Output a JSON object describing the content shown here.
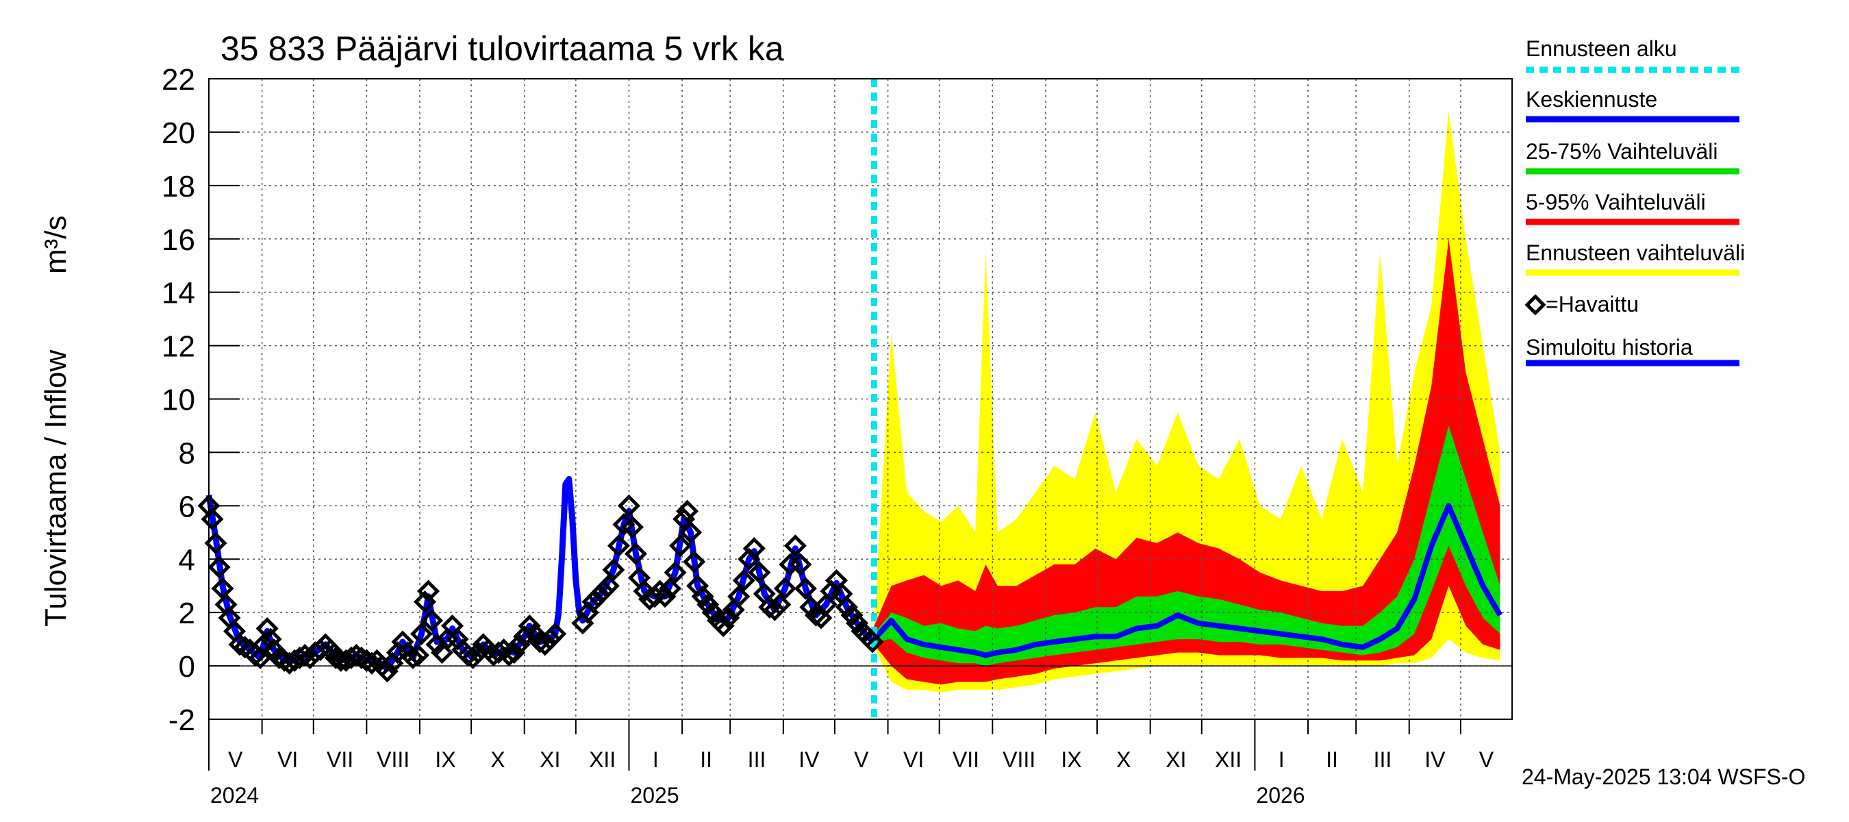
{
  "chart_data": {
    "type": "area",
    "title": "35 833 Pääjärvi tulovirtaama 5 vrk ka",
    "ylabel_main": "Tulovirtaama / Inflow",
    "ylabel_unit": "m³/s",
    "ylim": [
      -2,
      22
    ],
    "yticks": [
      "22",
      "20",
      "18",
      "16",
      "14",
      "12",
      "10",
      "8",
      "6",
      "4",
      "2",
      "0",
      "-2"
    ],
    "xlim": [
      "2024-05-01",
      "2026-05-31"
    ],
    "grid": true,
    "legend_position": "right",
    "forecast_start": "2025-05-24",
    "month_labels": [
      "V",
      "VI",
      "VII",
      "VIII",
      "IX",
      "X",
      "XI",
      "XII",
      "I",
      "II",
      "III",
      "IV",
      "V",
      "VI",
      "VII",
      "VIII",
      "IX",
      "X",
      "XI",
      "XII",
      "I",
      "II",
      "III",
      "IV",
      "V"
    ],
    "year_labels": [
      "2024",
      "2025",
      "2026"
    ],
    "legend": [
      {
        "label": "Ennusteen alku",
        "color": "#00e5ee",
        "style": "dotted"
      },
      {
        "label": "Keskiennuste",
        "color": "#0000ff",
        "style": "solid"
      },
      {
        "label": "25-75% Vaihteluväli",
        "color": "#00e000",
        "style": "solid"
      },
      {
        "label": "5-95% Vaihteluväli",
        "color": "#ff0000",
        "style": "solid"
      },
      {
        "label": "Ennusteen vaihteluväli",
        "color": "#ffff00",
        "style": "solid"
      },
      {
        "label": "=Havaittu",
        "color": "#000000",
        "style": "marker"
      },
      {
        "label": "Simuloitu historia",
        "color": "#0000ff",
        "style": "solid"
      }
    ],
    "observed": [
      [
        "2024-05-01",
        6.0
      ],
      [
        "2024-05-03",
        5.5
      ],
      [
        "2024-05-05",
        4.6
      ],
      [
        "2024-05-07",
        3.7
      ],
      [
        "2024-05-09",
        2.9
      ],
      [
        "2024-05-11",
        2.3
      ],
      [
        "2024-05-13",
        1.8
      ],
      [
        "2024-05-16",
        1.3
      ],
      [
        "2024-05-19",
        0.8
      ],
      [
        "2024-05-22",
        0.7
      ],
      [
        "2024-05-25",
        0.6
      ],
      [
        "2024-05-28",
        0.4
      ],
      [
        "2024-05-31",
        0.3
      ],
      [
        "2024-06-02",
        0.8
      ],
      [
        "2024-06-04",
        1.4
      ],
      [
        "2024-06-06",
        1.0
      ],
      [
        "2024-06-08",
        0.6
      ],
      [
        "2024-06-11",
        0.3
      ],
      [
        "2024-06-14",
        0.2
      ],
      [
        "2024-06-17",
        0.1
      ],
      [
        "2024-06-20",
        0.2
      ],
      [
        "2024-06-23",
        0.3
      ],
      [
        "2024-06-26",
        0.4
      ],
      [
        "2024-06-29",
        0.3
      ],
      [
        "2024-07-02",
        0.5
      ],
      [
        "2024-07-05",
        0.6
      ],
      [
        "2024-07-08",
        0.8
      ],
      [
        "2024-07-11",
        0.6
      ],
      [
        "2024-07-14",
        0.3
      ],
      [
        "2024-07-17",
        0.2
      ],
      [
        "2024-07-20",
        0.2
      ],
      [
        "2024-07-23",
        0.3
      ],
      [
        "2024-07-26",
        0.4
      ],
      [
        "2024-07-29",
        0.3
      ],
      [
        "2024-08-01",
        0.2
      ],
      [
        "2024-08-04",
        0.1
      ],
      [
        "2024-08-07",
        0.2
      ],
      [
        "2024-08-10",
        0.0
      ],
      [
        "2024-08-13",
        -0.2
      ],
      [
        "2024-08-16",
        0.1
      ],
      [
        "2024-08-19",
        0.5
      ],
      [
        "2024-08-22",
        0.9
      ],
      [
        "2024-08-25",
        0.5
      ],
      [
        "2024-08-28",
        0.3
      ],
      [
        "2024-08-31",
        0.4
      ],
      [
        "2024-09-02",
        1.2
      ],
      [
        "2024-09-04",
        2.4
      ],
      [
        "2024-09-06",
        2.8
      ],
      [
        "2024-09-08",
        1.7
      ],
      [
        "2024-09-11",
        0.8
      ],
      [
        "2024-09-14",
        0.5
      ],
      [
        "2024-09-17",
        1.0
      ],
      [
        "2024-09-20",
        1.5
      ],
      [
        "2024-09-23",
        1.0
      ],
      [
        "2024-09-26",
        0.6
      ],
      [
        "2024-09-29",
        0.4
      ],
      [
        "2024-10-02",
        0.3
      ],
      [
        "2024-10-05",
        0.5
      ],
      [
        "2024-10-08",
        0.8
      ],
      [
        "2024-10-11",
        0.6
      ],
      [
        "2024-10-14",
        0.4
      ],
      [
        "2024-10-17",
        0.5
      ],
      [
        "2024-10-20",
        0.6
      ],
      [
        "2024-10-23",
        0.4
      ],
      [
        "2024-10-26",
        0.5
      ],
      [
        "2024-10-29",
        0.8
      ],
      [
        "2024-11-01",
        1.1
      ],
      [
        "2024-11-04",
        1.5
      ],
      [
        "2024-11-07",
        1.2
      ],
      [
        "2024-11-10",
        0.9
      ],
      [
        "2024-11-13",
        0.8
      ],
      [
        "2024-11-16",
        1.0
      ],
      [
        "2024-11-19",
        1.2
      ],
      [
        "2024-12-05",
        1.6
      ],
      [
        "2024-12-08",
        2.0
      ],
      [
        "2024-12-11",
        2.4
      ],
      [
        "2024-12-14",
        2.6
      ],
      [
        "2024-12-17",
        2.8
      ],
      [
        "2024-12-20",
        3.0
      ],
      [
        "2024-12-23",
        3.6
      ],
      [
        "2024-12-26",
        4.5
      ],
      [
        "2024-12-29",
        5.3
      ],
      [
        "2025-01-01",
        6.0
      ],
      [
        "2025-01-03",
        5.2
      ],
      [
        "2025-01-05",
        4.2
      ],
      [
        "2025-01-07",
        3.3
      ],
      [
        "2025-01-10",
        2.8
      ],
      [
        "2025-01-13",
        2.5
      ],
      [
        "2025-01-16",
        2.6
      ],
      [
        "2025-01-19",
        2.8
      ],
      [
        "2025-01-22",
        2.6
      ],
      [
        "2025-01-25",
        2.9
      ],
      [
        "2025-01-28",
        3.5
      ],
      [
        "2025-01-31",
        4.5
      ],
      [
        "2025-02-02",
        5.5
      ],
      [
        "2025-02-04",
        5.8
      ],
      [
        "2025-02-06",
        5.0
      ],
      [
        "2025-02-08",
        3.9
      ],
      [
        "2025-02-10",
        3.0
      ],
      [
        "2025-02-13",
        2.6
      ],
      [
        "2025-02-16",
        2.3
      ],
      [
        "2025-02-19",
        2.0
      ],
      [
        "2025-02-22",
        1.7
      ],
      [
        "2025-02-25",
        1.5
      ],
      [
        "2025-02-28",
        1.8
      ],
      [
        "2025-03-03",
        2.1
      ],
      [
        "2025-03-06",
        2.6
      ],
      [
        "2025-03-09",
        3.2
      ],
      [
        "2025-03-12",
        4.0
      ],
      [
        "2025-03-15",
        4.4
      ],
      [
        "2025-03-18",
        3.5
      ],
      [
        "2025-03-21",
        2.7
      ],
      [
        "2025-03-24",
        2.2
      ],
      [
        "2025-03-27",
        2.1
      ],
      [
        "2025-03-30",
        2.3
      ],
      [
        "2025-04-02",
        2.9
      ],
      [
        "2025-04-05",
        3.8
      ],
      [
        "2025-04-08",
        4.5
      ],
      [
        "2025-04-11",
        3.8
      ],
      [
        "2025-04-14",
        2.9
      ],
      [
        "2025-04-17",
        2.2
      ],
      [
        "2025-04-20",
        1.9
      ],
      [
        "2025-04-23",
        1.8
      ],
      [
        "2025-04-26",
        2.3
      ],
      [
        "2025-04-29",
        2.8
      ],
      [
        "2025-05-02",
        3.2
      ],
      [
        "2025-05-05",
        2.7
      ],
      [
        "2025-05-08",
        2.2
      ],
      [
        "2025-05-11",
        1.9
      ],
      [
        "2025-05-14",
        1.6
      ],
      [
        "2025-05-17",
        1.3
      ],
      [
        "2025-05-20",
        1.1
      ],
      [
        "2025-05-23",
        0.9
      ]
    ],
    "simulated": [
      [
        "2024-05-01",
        6.4
      ],
      [
        "2024-05-05",
        4.8
      ],
      [
        "2024-05-09",
        3.0
      ],
      [
        "2024-05-13",
        1.9
      ],
      [
        "2024-05-19",
        0.9
      ],
      [
        "2024-05-25",
        0.6
      ],
      [
        "2024-05-31",
        0.3
      ],
      [
        "2024-06-04",
        1.3
      ],
      [
        "2024-06-08",
        0.6
      ],
      [
        "2024-06-14",
        0.2
      ],
      [
        "2024-06-20",
        0.2
      ],
      [
        "2024-06-26",
        0.4
      ],
      [
        "2024-07-02",
        0.5
      ],
      [
        "2024-07-08",
        0.8
      ],
      [
        "2024-07-14",
        0.3
      ],
      [
        "2024-07-20",
        0.2
      ],
      [
        "2024-07-26",
        0.4
      ],
      [
        "2024-08-01",
        0.2
      ],
      [
        "2024-08-07",
        0.2
      ],
      [
        "2024-08-13",
        -0.1
      ],
      [
        "2024-08-19",
        0.5
      ],
      [
        "2024-08-22",
        0.9
      ],
      [
        "2024-08-28",
        0.3
      ],
      [
        "2024-09-02",
        1.2
      ],
      [
        "2024-09-06",
        2.6
      ],
      [
        "2024-09-11",
        0.9
      ],
      [
        "2024-09-17",
        1.0
      ],
      [
        "2024-09-20",
        1.4
      ],
      [
        "2024-09-26",
        0.6
      ],
      [
        "2024-10-02",
        0.3
      ],
      [
        "2024-10-08",
        0.8
      ],
      [
        "2024-10-14",
        0.4
      ],
      [
        "2024-10-20",
        0.6
      ],
      [
        "2024-10-26",
        0.5
      ],
      [
        "2024-11-01",
        1.1
      ],
      [
        "2024-11-04",
        1.5
      ],
      [
        "2024-11-10",
        0.9
      ],
      [
        "2024-11-16",
        1.0
      ],
      [
        "2024-11-19",
        1.2
      ],
      [
        "2024-11-21",
        2.0
      ],
      [
        "2024-11-23",
        4.2
      ],
      [
        "2024-11-25",
        6.8
      ],
      [
        "2024-11-27",
        7.0
      ],
      [
        "2024-11-29",
        5.5
      ],
      [
        "2024-12-01",
        3.2
      ],
      [
        "2024-12-03",
        2.0
      ],
      [
        "2024-12-05",
        1.7
      ],
      [
        "2024-12-11",
        2.4
      ],
      [
        "2024-12-17",
        2.8
      ],
      [
        "2024-12-23",
        3.6
      ],
      [
        "2024-12-29",
        5.3
      ],
      [
        "2025-01-01",
        5.8
      ],
      [
        "2025-01-05",
        4.2
      ],
      [
        "2025-01-10",
        2.8
      ],
      [
        "2025-01-16",
        2.6
      ],
      [
        "2025-01-22",
        2.6
      ],
      [
        "2025-01-28",
        3.5
      ],
      [
        "2025-02-02",
        5.5
      ],
      [
        "2025-02-06",
        5.0
      ],
      [
        "2025-02-10",
        3.0
      ],
      [
        "2025-02-16",
        2.3
      ],
      [
        "2025-02-22",
        1.7
      ],
      [
        "2025-02-28",
        1.8
      ],
      [
        "2025-03-06",
        2.6
      ],
      [
        "2025-03-12",
        4.0
      ],
      [
        "2025-03-15",
        4.3
      ],
      [
        "2025-03-21",
        2.7
      ],
      [
        "2025-03-27",
        2.1
      ],
      [
        "2025-04-02",
        2.9
      ],
      [
        "2025-04-08",
        4.4
      ],
      [
        "2025-04-14",
        2.9
      ],
      [
        "2025-04-20",
        1.9
      ],
      [
        "2025-04-26",
        2.3
      ],
      [
        "2025-05-02",
        3.1
      ],
      [
        "2025-05-08",
        2.2
      ],
      [
        "2025-05-14",
        1.6
      ],
      [
        "2025-05-20",
        1.1
      ],
      [
        "2025-05-24",
        0.9
      ]
    ],
    "forecast_bands": [
      {
        "date": "2025-05-24",
        "max": 1.6,
        "p95": 1.5,
        "p75": 1.2,
        "p50": 1.0,
        "p25": 0.9,
        "p5": 0.8,
        "min": 0.7
      },
      {
        "date": "2025-06-03",
        "max": 12.5,
        "p95": 3.0,
        "p75": 2.0,
        "p50": 1.7,
        "p25": 1.0,
        "p5": 0.0,
        "min": -0.6
      },
      {
        "date": "2025-06-12",
        "max": 6.5,
        "p95": 3.2,
        "p75": 1.8,
        "p50": 1.0,
        "p25": 0.5,
        "p5": -0.5,
        "min": -0.9
      },
      {
        "date": "2025-06-22",
        "max": 5.8,
        "p95": 3.4,
        "p75": 1.5,
        "p50": 0.8,
        "p25": 0.3,
        "p5": -0.6,
        "min": -0.9
      },
      {
        "date": "2025-07-02",
        "max": 5.4,
        "p95": 3.0,
        "p75": 1.6,
        "p50": 0.7,
        "p25": 0.2,
        "p5": -0.7,
        "min": -1.0
      },
      {
        "date": "2025-07-12",
        "max": 6.0,
        "p95": 3.2,
        "p75": 1.4,
        "p50": 0.6,
        "p25": 0.1,
        "p5": -0.6,
        "min": -0.9
      },
      {
        "date": "2025-07-22",
        "max": 5.0,
        "p95": 2.8,
        "p75": 1.3,
        "p50": 0.5,
        "p25": 0.1,
        "p5": -0.6,
        "min": -0.9
      },
      {
        "date": "2025-07-28",
        "max": 15.5,
        "p95": 3.8,
        "p75": 1.5,
        "p50": 0.4,
        "p25": 0.0,
        "p5": -0.6,
        "min": -0.9
      },
      {
        "date": "2025-08-04",
        "max": 5.0,
        "p95": 3.0,
        "p75": 1.4,
        "p50": 0.5,
        "p25": 0.1,
        "p5": -0.5,
        "min": -0.9
      },
      {
        "date": "2025-08-15",
        "max": 5.5,
        "p95": 3.0,
        "p75": 1.5,
        "p50": 0.6,
        "p25": 0.2,
        "p5": -0.4,
        "min": -0.8
      },
      {
        "date": "2025-08-26",
        "max": 6.5,
        "p95": 3.4,
        "p75": 1.7,
        "p50": 0.8,
        "p25": 0.3,
        "p5": -0.3,
        "min": -0.7
      },
      {
        "date": "2025-09-06",
        "max": 7.5,
        "p95": 3.8,
        "p75": 1.9,
        "p50": 0.9,
        "p25": 0.4,
        "p5": -0.1,
        "min": -0.5
      },
      {
        "date": "2025-09-18",
        "max": 7.0,
        "p95": 3.8,
        "p75": 2.0,
        "p50": 1.0,
        "p25": 0.5,
        "p5": 0.0,
        "min": -0.4
      },
      {
        "date": "2025-09-30",
        "max": 9.5,
        "p95": 4.4,
        "p75": 2.2,
        "p50": 1.1,
        "p25": 0.6,
        "p5": 0.1,
        "min": -0.3
      },
      {
        "date": "2025-10-12",
        "max": 6.5,
        "p95": 4.0,
        "p75": 2.2,
        "p50": 1.1,
        "p25": 0.7,
        "p5": 0.2,
        "min": -0.2
      },
      {
        "date": "2025-10-24",
        "max": 8.5,
        "p95": 4.8,
        "p75": 2.6,
        "p50": 1.4,
        "p25": 0.8,
        "p5": 0.3,
        "min": -0.1
      },
      {
        "date": "2025-11-05",
        "max": 7.5,
        "p95": 4.6,
        "p75": 2.6,
        "p50": 1.5,
        "p25": 0.9,
        "p5": 0.4,
        "min": 0.0
      },
      {
        "date": "2025-11-17",
        "max": 9.5,
        "p95": 5.0,
        "p75": 2.8,
        "p50": 1.9,
        "p25": 1.0,
        "p5": 0.5,
        "min": 0.0
      },
      {
        "date": "2025-11-29",
        "max": 7.5,
        "p95": 4.6,
        "p75": 2.6,
        "p50": 1.6,
        "p25": 1.0,
        "p5": 0.5,
        "min": 0.0
      },
      {
        "date": "2025-12-11",
        "max": 7.0,
        "p95": 4.4,
        "p75": 2.5,
        "p50": 1.5,
        "p25": 0.9,
        "p5": 0.4,
        "min": 0.0
      },
      {
        "date": "2025-12-23",
        "max": 8.5,
        "p95": 4.0,
        "p75": 2.3,
        "p50": 1.4,
        "p25": 0.9,
        "p5": 0.4,
        "min": 0.0
      },
      {
        "date": "2026-01-04",
        "max": 6.0,
        "p95": 3.5,
        "p75": 2.1,
        "p50": 1.3,
        "p25": 0.8,
        "p5": 0.4,
        "min": 0.0
      },
      {
        "date": "2026-01-16",
        "max": 5.5,
        "p95": 3.2,
        "p75": 2.0,
        "p50": 1.2,
        "p25": 0.8,
        "p5": 0.3,
        "min": 0.0
      },
      {
        "date": "2026-01-28",
        "max": 7.5,
        "p95": 3.0,
        "p75": 1.8,
        "p50": 1.1,
        "p25": 0.7,
        "p5": 0.3,
        "min": 0.0
      },
      {
        "date": "2026-02-09",
        "max": 5.5,
        "p95": 2.8,
        "p75": 1.6,
        "p50": 1.0,
        "p25": 0.6,
        "p5": 0.3,
        "min": 0.0
      },
      {
        "date": "2026-02-21",
        "max": 8.5,
        "p95": 2.8,
        "p75": 1.5,
        "p50": 0.8,
        "p25": 0.5,
        "p5": 0.2,
        "min": 0.0
      },
      {
        "date": "2026-03-05",
        "max": 6.5,
        "p95": 3.0,
        "p75": 1.5,
        "p50": 0.7,
        "p25": 0.4,
        "p5": 0.2,
        "min": 0.0
      },
      {
        "date": "2026-03-15",
        "max": 15.5,
        "p95": 4.0,
        "p75": 2.0,
        "p50": 1.0,
        "p25": 0.5,
        "p5": 0.2,
        "min": 0.0
      },
      {
        "date": "2026-03-25",
        "max": 7.5,
        "p95": 5.0,
        "p75": 2.6,
        "p50": 1.4,
        "p25": 0.7,
        "p5": 0.3,
        "min": 0.1
      },
      {
        "date": "2026-04-04",
        "max": 11.0,
        "p95": 7.5,
        "p75": 4.0,
        "p50": 2.5,
        "p25": 1.2,
        "p5": 0.4,
        "min": 0.1
      },
      {
        "date": "2026-04-14",
        "max": 13.5,
        "p95": 10.5,
        "p75": 6.5,
        "p50": 4.5,
        "p25": 2.8,
        "p5": 1.0,
        "min": 0.3
      },
      {
        "date": "2026-04-24",
        "max": 20.8,
        "p95": 16.0,
        "p75": 9.0,
        "p50": 6.0,
        "p25": 4.5,
        "p5": 3.0,
        "min": 1.0
      },
      {
        "date": "2026-05-04",
        "max": 16.0,
        "p95": 11.0,
        "p75": 7.0,
        "p50": 4.5,
        "p25": 3.0,
        "p5": 1.5,
        "min": 0.5
      },
      {
        "date": "2026-05-14",
        "max": 12.0,
        "p95": 8.5,
        "p75": 5.0,
        "p50": 3.0,
        "p25": 1.8,
        "p5": 0.8,
        "min": 0.3
      },
      {
        "date": "2026-05-24",
        "max": 8.0,
        "p95": 6.0,
        "p75": 3.0,
        "p50": 1.9,
        "p25": 1.2,
        "p5": 0.6,
        "min": 0.2
      }
    ]
  },
  "footer": {
    "timestamp": "24-May-2025 13:04 WSFS-O"
  }
}
